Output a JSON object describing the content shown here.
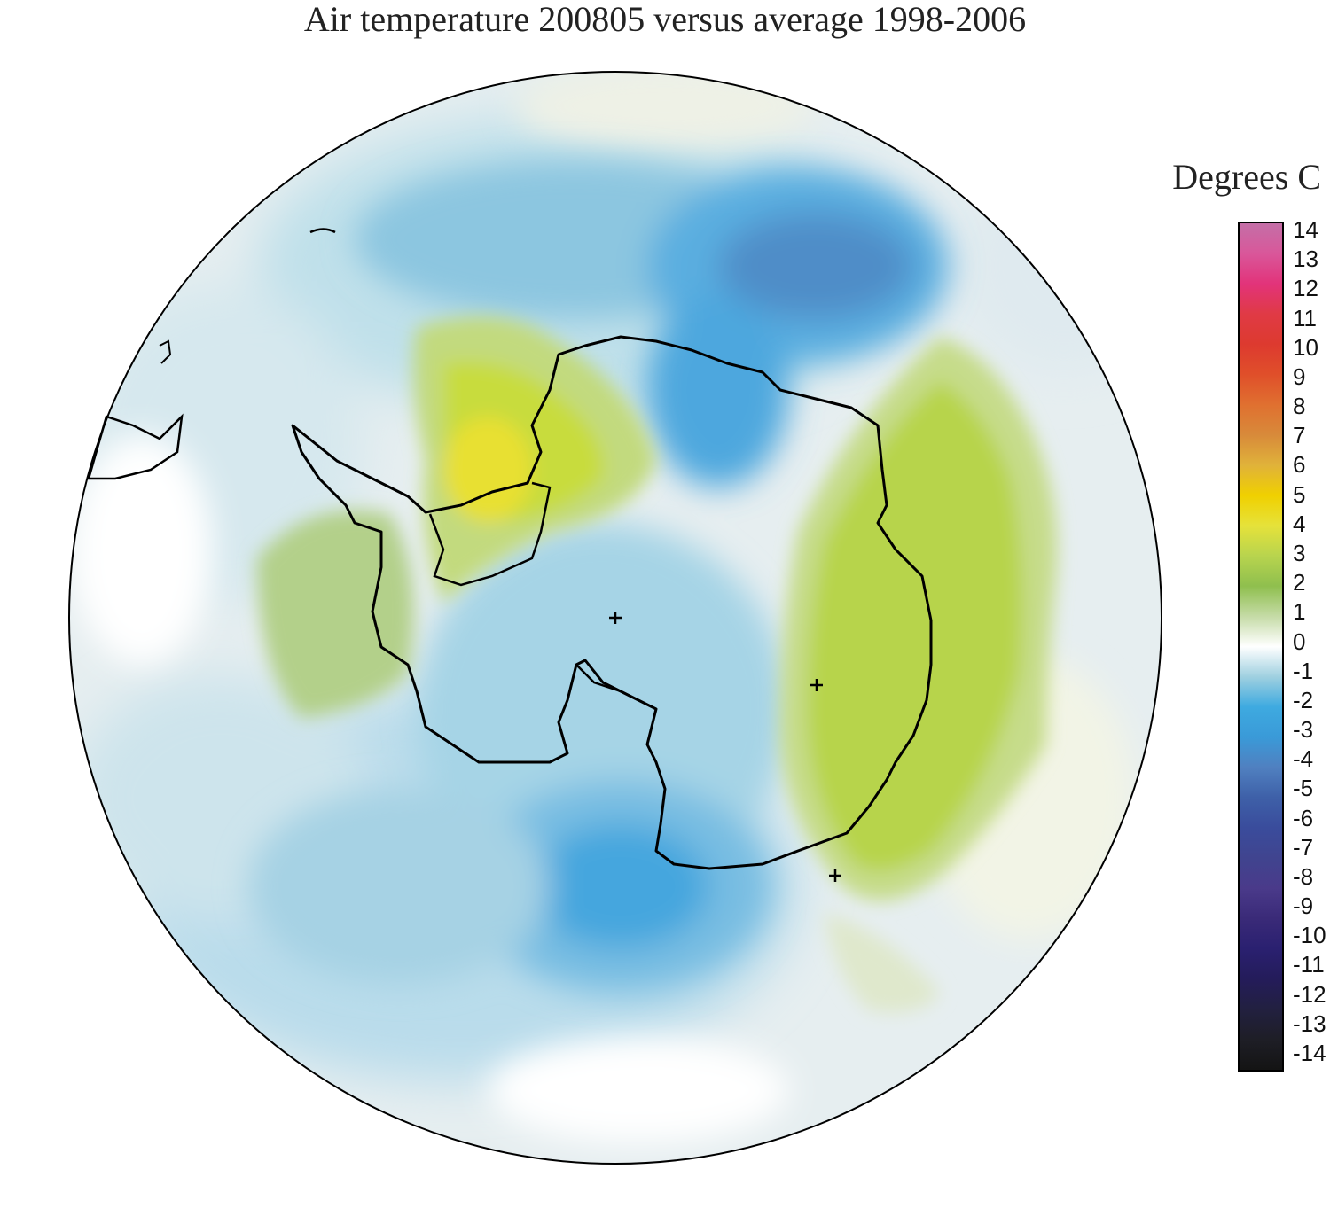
{
  "title": "Air temperature 200805 versus average 1998-2006",
  "legend": {
    "title": "Degrees C",
    "ticks": [
      "14",
      "13",
      "12",
      "11",
      "10",
      "9",
      "8",
      "7",
      "6",
      "5",
      "4",
      "3",
      "2",
      "1",
      "0",
      "-1",
      "-2",
      "-3",
      "-4",
      "-5",
      "-6",
      "-7",
      "-8",
      "-9",
      "-10",
      "-11",
      "-12",
      "-13",
      "-14"
    ],
    "colors": {
      "14": "#c46fa7",
      "13": "#d9579a",
      "12": "#e2337a",
      "11": "#e03a45",
      "10": "#dd3a2f",
      "9": "#e04f2a",
      "8": "#e07030",
      "7": "#d88a3a",
      "6": "#e0b23a",
      "5": "#f0d000",
      "4": "#e6e23a",
      "3": "#b8d44e",
      "2": "#8fbf4e",
      "1": "#c5dba6",
      "0": "#ffffff",
      "-1": "#9fd0e0",
      "-2": "#3eaae0",
      "-3": "#3a9ad8",
      "-4": "#5080c0",
      "-5": "#3e60a8",
      "-6": "#3a4c9c",
      "-7": "#40448f",
      "-8": "#4a3a8a",
      "-9": "#3a2a78",
      "-10": "#2a2070",
      "-11": "#241c5a",
      "-12": "#222040",
      "-13": "#1e1e26",
      "-14": "#141414"
    }
  },
  "map": {
    "projection": "south polar stereographic",
    "region": "Antarctica",
    "markers": [
      "+",
      "+",
      "+"
    ]
  }
}
